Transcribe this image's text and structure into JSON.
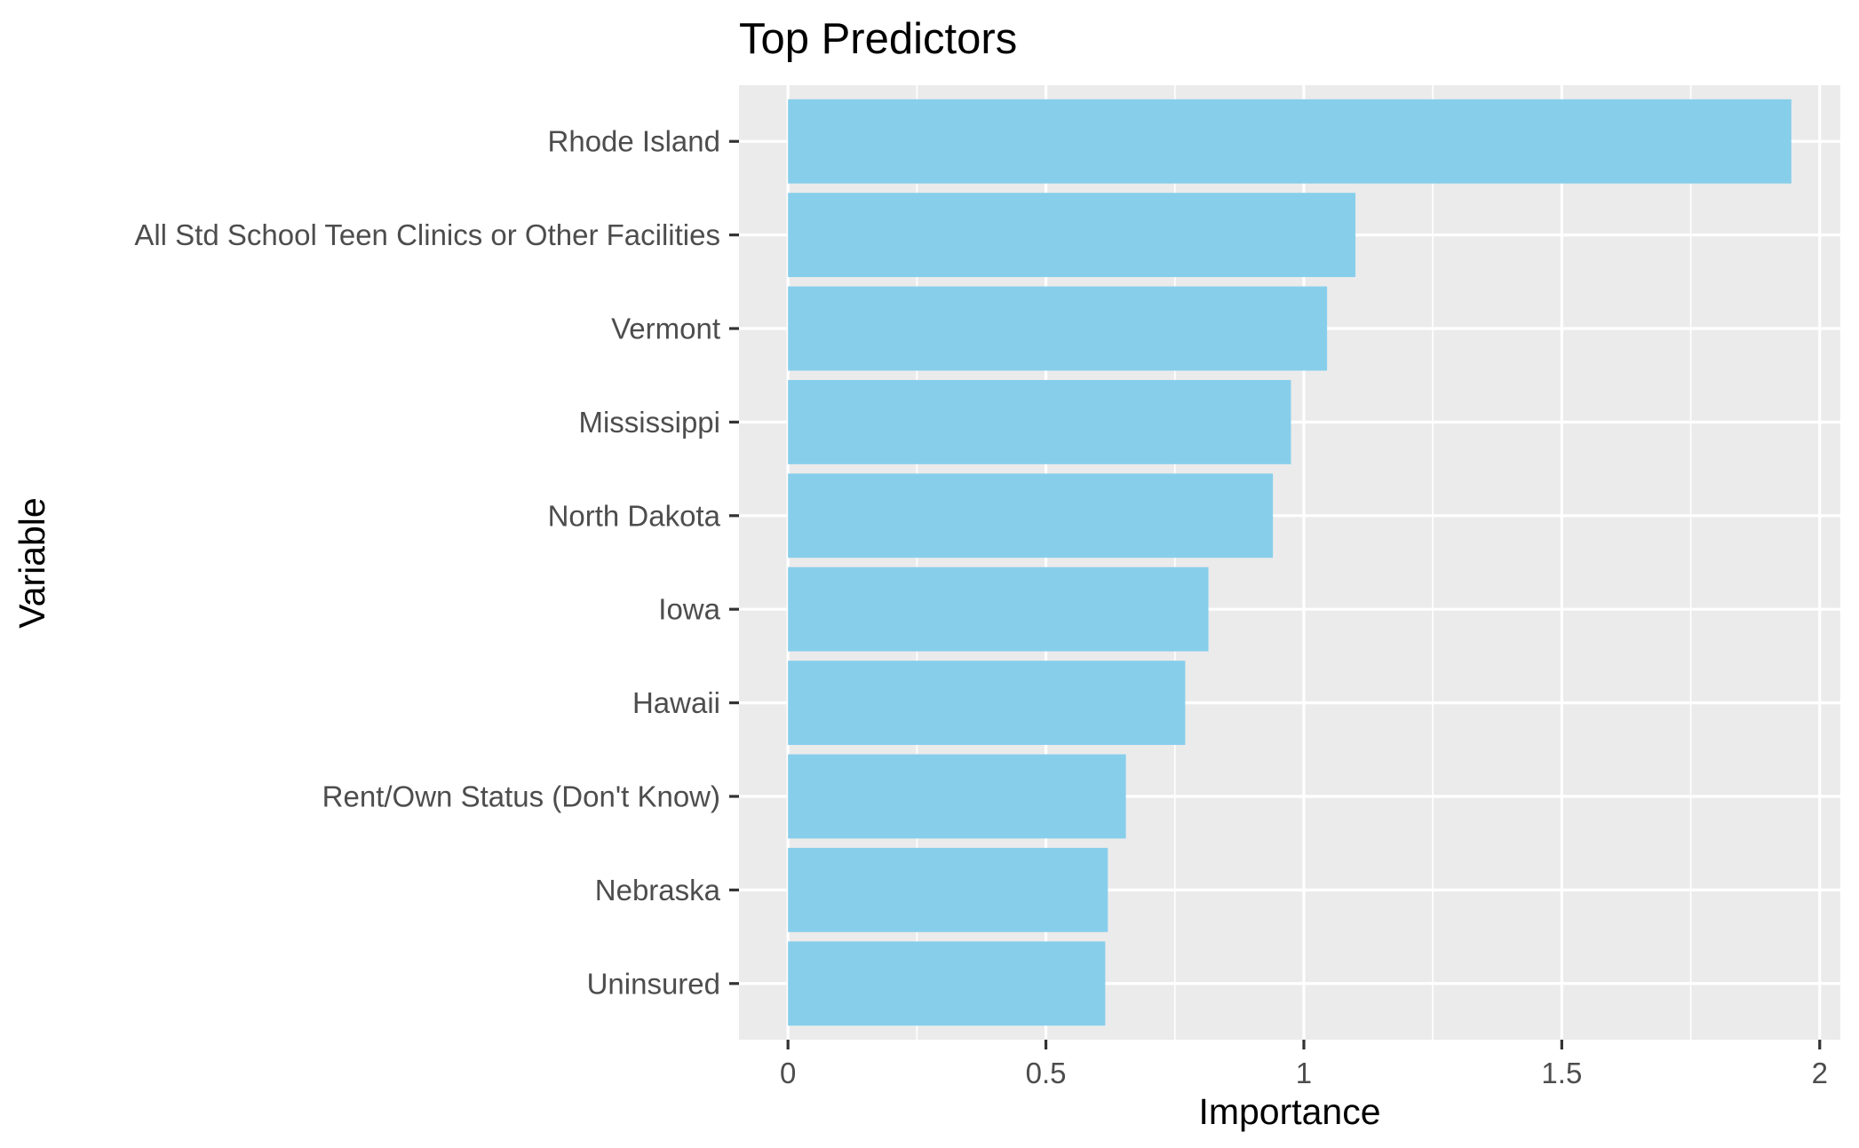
{
  "chart_data": {
    "type": "bar",
    "orientation": "horizontal",
    "title": "Top Predictors",
    "xlabel": "Importance",
    "ylabel": "Variable",
    "categories": [
      "Rhode Island",
      "All Std School Teen Clinics or Other Facilities",
      "Vermont",
      "Mississippi",
      "North Dakota",
      "Iowa",
      "Hawaii",
      "Rent/Own Status (Don't Know)",
      "Nebraska",
      "Uninsured"
    ],
    "values": [
      1.945,
      1.1,
      1.045,
      0.975,
      0.94,
      0.815,
      0.77,
      0.655,
      0.62,
      0.615
    ],
    "xticks": [
      0,
      0.5,
      1,
      1.5,
      2
    ],
    "xtick_labels": [
      "0",
      "0.5",
      "1",
      "1.5",
      "2"
    ],
    "xlim": [
      -0.095,
      2.04
    ],
    "grid": true,
    "bar_color": "#87ceeb",
    "panel_color": "#ebebeb"
  }
}
